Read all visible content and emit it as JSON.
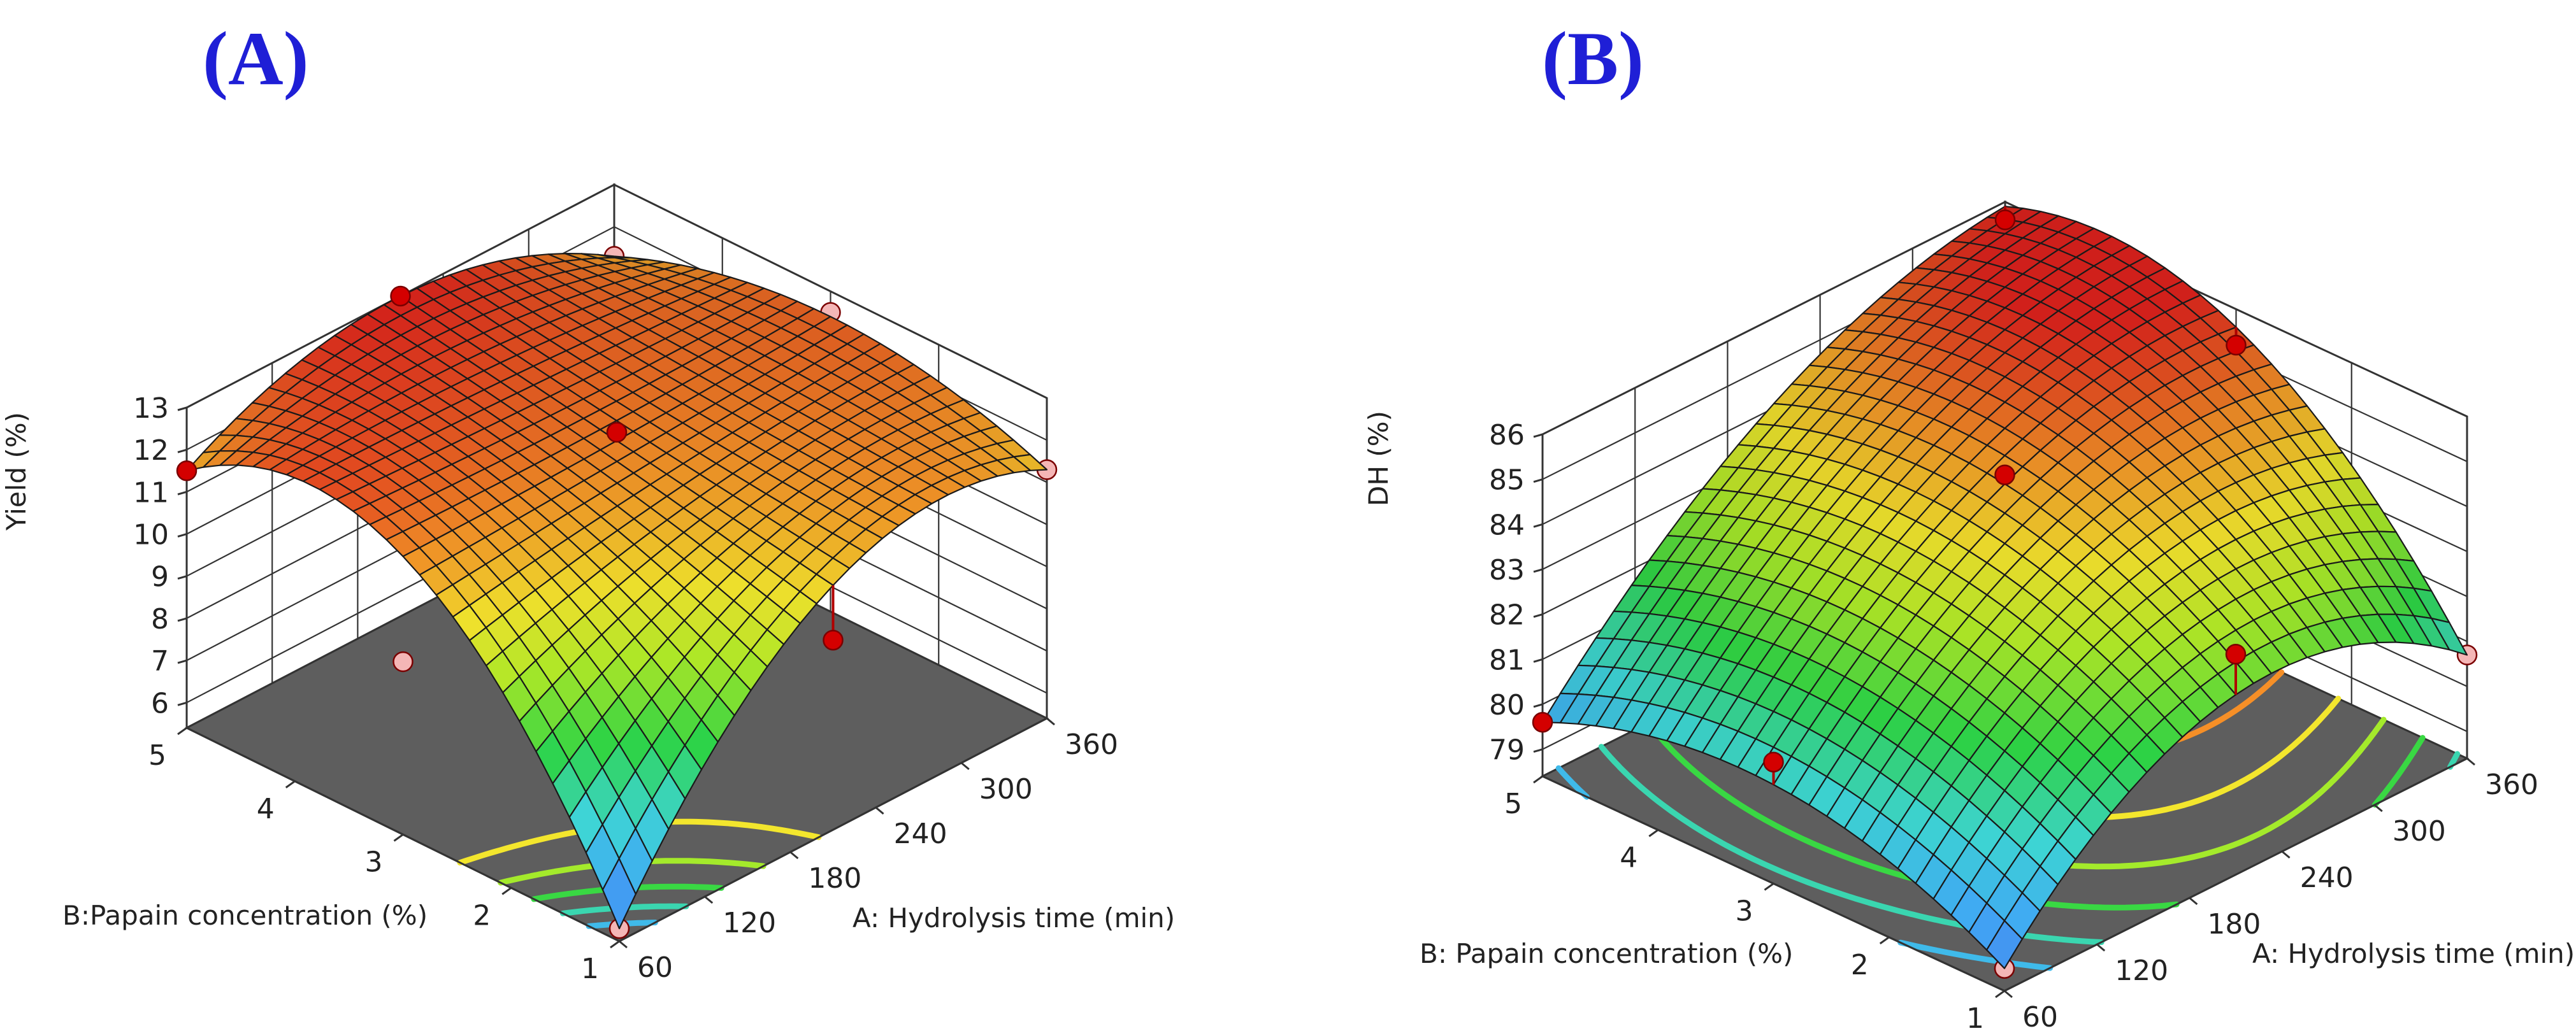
{
  "chart_data": [
    {
      "panel_label": "(A)",
      "type": "surface3d",
      "zlabel": "Yield (%)",
      "xlabel": "A: Hydrolysis time (min)",
      "ylabel": "B:Papain concentration (%)",
      "x_ticks": [
        60,
        120,
        180,
        240,
        300,
        360
      ],
      "y_ticks": [
        1,
        2,
        3,
        4,
        5
      ],
      "z_ticks": [
        6,
        7,
        8,
        9,
        10,
        11,
        12,
        13
      ],
      "xlim": [
        60,
        360
      ],
      "ylim": [
        1,
        5
      ],
      "zlim": [
        5.4,
        13
      ],
      "surface": {
        "model": "bilinear_quadratic",
        "corners": {
          "x_min_y_min": 5.7,
          "x_max_y_min": 11.3,
          "x_min_y_max": 11.5,
          "x_max_y_max": 11.3
        },
        "center": 12.1,
        "edge_midpoints": {
          "x_min": 12.0,
          "x_max": 12.4,
          "y_min": 11.2,
          "y_max": 13.0
        }
      },
      "design_points": [
        {
          "x": 60,
          "y": 1,
          "z": 5.7,
          "above_surface": false
        },
        {
          "x": 360,
          "y": 1,
          "z": 11.3,
          "above_surface": false
        },
        {
          "x": 60,
          "y": 5,
          "z": 11.5,
          "above_surface": true
        },
        {
          "x": 360,
          "y": 5,
          "z": 11.3,
          "above_surface": false
        },
        {
          "x": 210,
          "y": 3,
          "z": 12.3,
          "above_surface": true
        },
        {
          "x": 210,
          "y": 5,
          "z": 13.0,
          "above_surface": true
        },
        {
          "x": 360,
          "y": 3,
          "z": 12.5,
          "above_surface": false
        },
        {
          "x": 60,
          "y": 3,
          "z": 9.5,
          "above_surface": false
        },
        {
          "x": 210,
          "y": 1,
          "z": 9.9,
          "above_surface": true
        }
      ],
      "contour_levels": [
        7,
        8,
        9,
        10,
        11
      ]
    },
    {
      "panel_label": "(B)",
      "type": "surface3d",
      "zlabel": "DH (%)",
      "xlabel": "A: Hydrolysis time (min)",
      "ylabel": "B: Papain concentration (%)",
      "x_ticks": [
        60,
        120,
        180,
        240,
        300,
        360
      ],
      "y_ticks": [
        1,
        2,
        3,
        4,
        5
      ],
      "z_ticks": [
        79,
        80,
        81,
        82,
        83,
        84,
        85,
        86
      ],
      "xlim": [
        60,
        360
      ],
      "ylim": [
        1,
        5
      ],
      "zlim": [
        78.4,
        86
      ],
      "surface": {
        "model": "bilinear_quadratic",
        "corners": {
          "x_min_y_min": 78.9,
          "x_max_y_min": 80.7,
          "x_min_y_max": 79.6,
          "x_max_y_max": 85.9
        },
        "center": 84.7,
        "edge_midpoints": {
          "x_min": 80.6,
          "x_max": 85.6,
          "y_min": 82.4,
          "y_max": 84.1
        }
      },
      "design_points": [
        {
          "x": 60,
          "y": 1,
          "z": 78.9,
          "above_surface": false
        },
        {
          "x": 360,
          "y": 1,
          "z": 80.7,
          "above_surface": false
        },
        {
          "x": 60,
          "y": 5,
          "z": 79.6,
          "above_surface": true
        },
        {
          "x": 210,
          "y": 3,
          "z": 84.9,
          "above_surface": true
        },
        {
          "x": 360,
          "y": 5,
          "z": 85.6,
          "above_surface": true
        },
        {
          "x": 210,
          "y": 1,
          "z": 83.3,
          "above_surface": true
        },
        {
          "x": 60,
          "y": 3,
          "z": 81.1,
          "above_surface": true
        },
        {
          "x": 360,
          "y": 3,
          "z": 85.2,
          "above_surface": true
        }
      ],
      "contour_levels": [
        80,
        81,
        82,
        83,
        84,
        85
      ]
    }
  ],
  "colors": {
    "point_above": "#d40000",
    "point_below": "#f4b6b6",
    "floor": "#5e5e5e",
    "mesh_line": "#1a1a1a",
    "letter": "#1f1fd6"
  }
}
